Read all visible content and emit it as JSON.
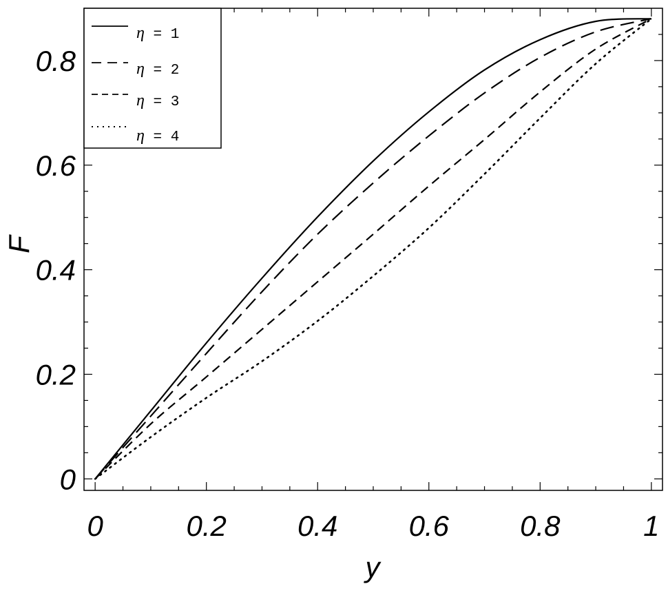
{
  "chart_data": {
    "type": "line",
    "xlabel": "y",
    "ylabel": "F",
    "xlim": [
      -0.02,
      1.02
    ],
    "ylim": [
      -0.022,
      0.9
    ],
    "xticks": [
      0,
      0.2,
      0.4,
      0.6,
      0.8,
      1
    ],
    "xtick_labels": [
      "0",
      "0.2",
      "0.4",
      "0.6",
      "0.8",
      "1"
    ],
    "yticks": [
      0,
      0.2,
      0.4,
      0.6,
      0.8
    ],
    "ytick_labels": [
      "0",
      "0.2",
      "0.4",
      "0.6",
      "0.8"
    ],
    "legend_position": "top-left",
    "grid": false,
    "x": [
      0,
      0.1,
      0.2,
      0.3,
      0.4,
      0.5,
      0.6,
      0.7,
      0.8,
      0.9,
      1.0
    ],
    "series": [
      {
        "name": "η = 1",
        "style": "solid",
        "color": "#000000",
        "values": [
          0,
          0.13,
          0.26,
          0.384,
          0.501,
          0.608,
          0.702,
          0.782,
          0.84,
          0.875,
          0.88
        ]
      },
      {
        "name": "η = 2",
        "style": "long-dash",
        "color": "#000000",
        "values": [
          0,
          0.12,
          0.24,
          0.358,
          0.468,
          0.566,
          0.656,
          0.738,
          0.806,
          0.855,
          0.88
        ]
      },
      {
        "name": "η = 3",
        "style": "short-dash",
        "color": "#000000",
        "values": [
          0,
          0.105,
          0.195,
          0.286,
          0.377,
          0.468,
          0.56,
          0.649,
          0.74,
          0.822,
          0.88
        ]
      },
      {
        "name": "η = 4",
        "style": "dotted",
        "color": "#000000",
        "values": [
          0,
          0.08,
          0.155,
          0.225,
          0.302,
          0.388,
          0.48,
          0.583,
          0.69,
          0.794,
          0.88
        ]
      }
    ]
  },
  "legend": {
    "entries": [
      {
        "symbol": "η",
        "text": " = 1"
      },
      {
        "symbol": "η",
        "text": " = 2"
      },
      {
        "symbol": "η",
        "text": " = 3"
      },
      {
        "symbol": "η",
        "text": " = 4"
      }
    ]
  }
}
